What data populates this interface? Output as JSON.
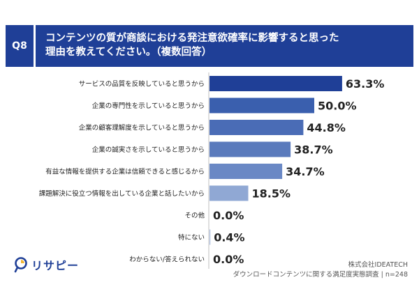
{
  "header": {
    "question": "Q8",
    "title": "コンテンツの質が商談における発注意欲確率に影響すると思った\n理由を教えてください。（複数回答）"
  },
  "chart_data": {
    "type": "bar",
    "orientation": "horizontal",
    "unit": "%",
    "categories": [
      "サービスの品質を反映していると思うから",
      "企業の専門性を示していると思うから",
      "企業の顧客理解度を示していると思うから",
      "企業の誠実さを示していると思うから",
      "有益な情報を提供する企業は信頼できると感じるから",
      "課題解決に役立つ情報を出している企業と話したいから",
      "その他",
      "特にない",
      "わからない/答えられない"
    ],
    "values": [
      63.3,
      50.0,
      44.8,
      38.7,
      34.7,
      18.5,
      0.0,
      0.4,
      0.0
    ],
    "value_labels": [
      "63.3%",
      "50.0%",
      "44.8%",
      "38.7%",
      "34.7%",
      "18.5%",
      "0.0%",
      "0.4%",
      "0.0%"
    ],
    "colors": [
      "#1f3f97",
      "#3a5fae",
      "#4a6cb6",
      "#5a7abc",
      "#6a88c5",
      "#90a8d4",
      "#a9bbdf",
      "#a9bbdf",
      "#a9bbdf"
    ],
    "xlim": [
      0,
      100
    ]
  },
  "brand": {
    "name": "リサピー",
    "icon": "magnifier-logo-icon"
  },
  "source": {
    "line1": "株式会社IDEATECH",
    "line2": "ダウンロードコンテンツに関する満足度実態調査",
    "n": "n=248"
  }
}
